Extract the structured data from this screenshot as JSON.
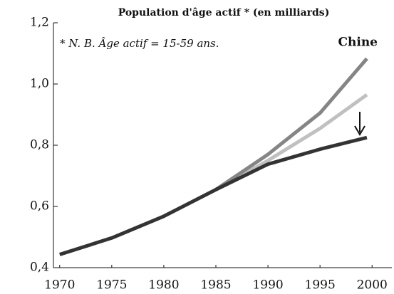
{
  "chart_data": {
    "type": "line",
    "title": "Population d'âge actif * (en milliards)",
    "note": "* N. B. Âge actif = 15-59 ans.",
    "annotation": "Chine",
    "x": [
      1970,
      1975,
      1980,
      1985,
      1990,
      1995,
      1999.5
    ],
    "series": [
      {
        "color": "#c0c0c0",
        "values": [
          null,
          null,
          null,
          0.655,
          0.75,
          0.855,
          0.965
        ]
      },
      {
        "color": "#858585",
        "values": [
          null,
          null,
          null,
          0.655,
          0.77,
          0.905,
          1.083
        ]
      },
      {
        "color": "#333333",
        "values": [
          0.443,
          0.497,
          0.568,
          0.655,
          0.738,
          0.787,
          0.825
        ]
      }
    ],
    "xlim": [
      1969.4,
      2001.9
    ],
    "xticks": [
      1970,
      1975,
      1980,
      1985,
      1990,
      1995,
      2000
    ],
    "ylim": [
      0.4,
      1.2
    ],
    "yticks": [
      {
        "value": 0.4,
        "label": "0,4"
      },
      {
        "value": 0.6,
        "label": "0,6"
      },
      {
        "value": 0.8,
        "label": "0,8"
      },
      {
        "value": 1.0,
        "label": "1,0"
      },
      {
        "value": 1.2,
        "label": "1,2"
      }
    ]
  }
}
